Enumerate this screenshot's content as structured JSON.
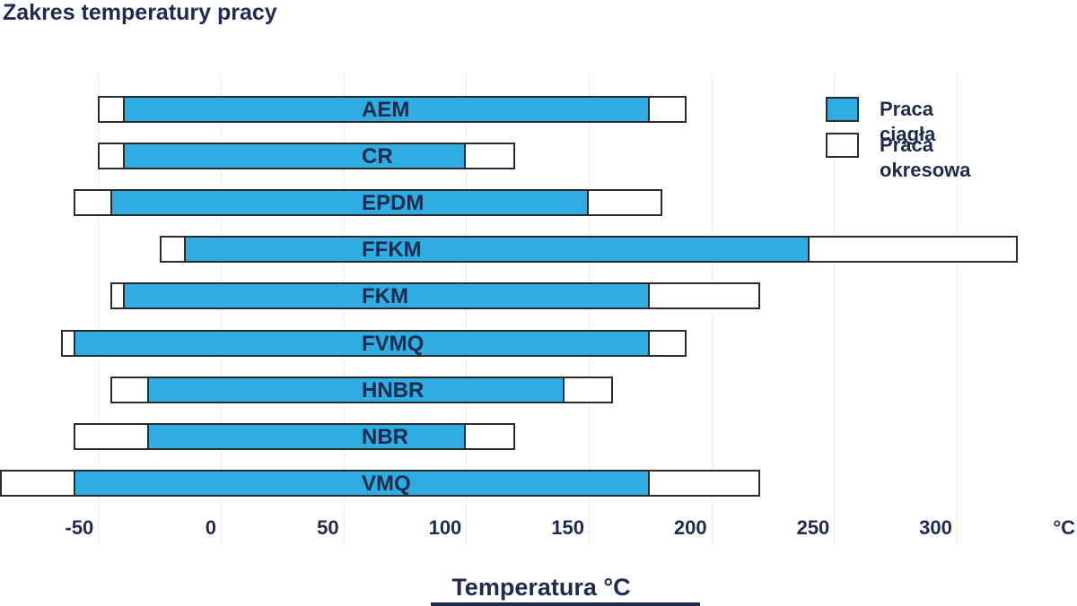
{
  "title": "Zakres temperatury pracy",
  "legend": {
    "continuous_label": "Praca ciągła",
    "intermittent_label": "Praca okresowa"
  },
  "axis": {
    "label": "Temperatura °C",
    "unit": "°C"
  },
  "colors": {
    "continuous_fill": "#2fade3",
    "intermittent_fill": "#ffffff",
    "bar_border": "#2b2b2b",
    "text": "#1f2b4e",
    "gridline": "#ededed"
  },
  "chart_data": {
    "type": "bar",
    "orientation": "horizontal",
    "title": "Zakres temperatury pracy",
    "xlabel": "Temperatura °C",
    "grid": true,
    "legend_position": "top-right",
    "x_ticks": [
      -50,
      0,
      50,
      100,
      150,
      200,
      250,
      300
    ],
    "xlim": [
      -90,
      335
    ],
    "categories": [
      "AEM",
      "CR",
      "EPDM",
      "FFKM",
      "FKM",
      "FVMQ",
      "HNBR",
      "NBR",
      "VMQ"
    ],
    "series": [
      {
        "name": "Praca ciągła",
        "ranges": [
          [
            -40,
            175
          ],
          [
            -40,
            100
          ],
          [
            -45,
            150
          ],
          [
            -15,
            240
          ],
          [
            -40,
            175
          ],
          [
            -60,
            175
          ],
          [
            -30,
            140
          ],
          [
            -30,
            100
          ],
          [
            -60,
            175
          ]
        ]
      },
      {
        "name": "Praca okresowa",
        "ranges": [
          [
            -50,
            190
          ],
          [
            -50,
            120
          ],
          [
            -60,
            180
          ],
          [
            -25,
            325
          ],
          [
            -45,
            220
          ],
          [
            -65,
            190
          ],
          [
            -45,
            160
          ],
          [
            -60,
            120
          ],
          [
            -90,
            220
          ]
        ]
      }
    ]
  }
}
